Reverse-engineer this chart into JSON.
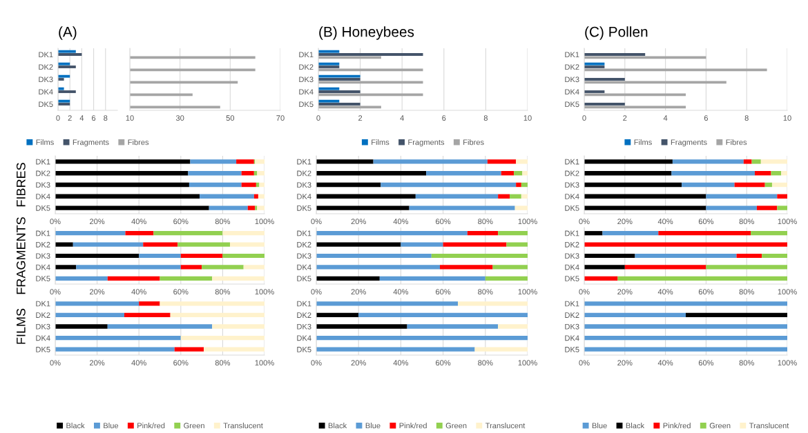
{
  "chart_data": [
    {
      "type": "bar",
      "orientation": "horizontal",
      "title": "(A)",
      "categories": [
        "DK1",
        "DK2",
        "DK3",
        "DK4",
        "DK5"
      ],
      "xlim": [
        0,
        10
      ],
      "xticks": [
        0,
        2,
        4,
        6,
        8
      ],
      "grid": "x",
      "legend": "bottom",
      "series": [
        {
          "name": "Films",
          "color": "#0070c0",
          "values": [
            3,
            2,
            2,
            1,
            2
          ]
        },
        {
          "name": "Fragments",
          "color": "#44546a",
          "values": [
            4,
            3,
            1,
            3,
            2
          ]
        },
        {
          "name": "Fibres",
          "color": "#a5a5a5",
          "values": [
            null,
            null,
            null,
            null,
            null
          ]
        }
      ]
    },
    {
      "type": "bar",
      "orientation": "horizontal",
      "categories": [
        null,
        null,
        null,
        null,
        null
      ],
      "xlim": [
        10,
        70
      ],
      "xticks": [
        10,
        30,
        50,
        70
      ],
      "grid": "x",
      "series": [
        {
          "color": "#0070c0",
          "values": [
            null,
            null,
            null,
            null,
            null
          ]
        },
        {
          "color": "#44546a",
          "values": [
            null,
            null,
            null,
            null,
            null
          ]
        },
        {
          "color": "#a5a5a5",
          "values": [
            60,
            60,
            53,
            35,
            46
          ]
        }
      ]
    },
    {
      "type": "bar",
      "orientation": "horizontal",
      "title": "(B) Honeybees",
      "categories": [
        "DK1",
        "DK2",
        "DK3",
        "DK4",
        "DK5"
      ],
      "xlim": [
        0,
        10
      ],
      "xticks": [
        0,
        2,
        4,
        6,
        8,
        10
      ],
      "grid": "x",
      "legend": "bottom",
      "series": [
        {
          "name": "Films",
          "color": "#0070c0",
          "values": [
            1,
            1,
            2,
            1,
            1
          ]
        },
        {
          "name": "Fragments",
          "color": "#44546a",
          "values": [
            5,
            1,
            2,
            2,
            2
          ]
        },
        {
          "name": "Fibres",
          "color": "#a5a5a5",
          "values": [
            3,
            5,
            5,
            5,
            3
          ]
        }
      ]
    },
    {
      "type": "bar",
      "orientation": "horizontal",
      "title": "(C) Pollen",
      "categories": [
        "DK1",
        "DK2",
        "DK3",
        "DK4",
        "DK5"
      ],
      "xlim": [
        0,
        10
      ],
      "xticks": [
        0,
        2,
        4,
        6,
        8,
        10
      ],
      "grid": "x",
      "legend": "bottom",
      "series": [
        {
          "name": "Films",
          "color": "#0070c0",
          "values": [
            0,
            1,
            0,
            0,
            0
          ]
        },
        {
          "name": "Fragments",
          "color": "#44546a",
          "values": [
            3,
            1,
            2,
            1,
            2
          ]
        },
        {
          "name": "Fibres",
          "color": "#a5a5a5",
          "values": [
            6,
            9,
            7,
            5,
            5
          ]
        }
      ]
    },
    {
      "type": "bar",
      "orientation": "horizontal",
      "stacked": true,
      "ylabel": "FIBRES",
      "categories": [
        "DK1",
        "DK2",
        "DK3",
        "DK4",
        "DK5"
      ],
      "xlim": [
        0,
        100
      ],
      "xticks": [
        {
          "value": 0,
          "label": "0%"
        },
        {
          "value": 20,
          "label": "20%"
        },
        {
          "value": 40,
          "label": "40%"
        },
        {
          "value": 60,
          "label": "60%"
        },
        {
          "value": 80,
          "label": "80%"
        },
        {
          "value": 100,
          "label": "100%"
        }
      ],
      "grid": "x",
      "series": [
        {
          "color": "#000000",
          "values": [
            64.5,
            63.5,
            64,
            69,
            73.5
          ]
        },
        {
          "color": "#5b9bd5",
          "values": [
            22,
            25.5,
            25,
            26,
            18.5
          ]
        },
        {
          "color": "#ff0000",
          "values": [
            8.5,
            6,
            7,
            2,
            3.5
          ]
        },
        {
          "color": "#92d050",
          "values": [
            0.5,
            1.5,
            1.5,
            0,
            1
          ]
        },
        {
          "color": "#fff2cc",
          "values": [
            4.5,
            3.5,
            2.5,
            3,
            3.5
          ]
        }
      ]
    },
    {
      "type": "bar",
      "orientation": "horizontal",
      "stacked": true,
      "categories": [
        "DK1",
        "DK2",
        "DK3",
        "DK4",
        "DK5"
      ],
      "xlim": [
        0,
        100
      ],
      "xticks": [
        {
          "value": 0,
          "label": "0%"
        },
        {
          "value": 20,
          "label": "20%"
        },
        {
          "value": 40,
          "label": "40%"
        },
        {
          "value": 60,
          "label": "60%"
        },
        {
          "value": 80,
          "label": "80%"
        },
        {
          "value": 100,
          "label": "100%"
        }
      ],
      "grid": "x",
      "series": [
        {
          "color": "#000000",
          "values": [
            27,
            52,
            30.5,
            47,
            44
          ]
        },
        {
          "color": "#5b9bd5",
          "values": [
            54,
            35.5,
            64,
            39,
            50
          ]
        },
        {
          "color": "#ff0000",
          "values": [
            13.5,
            6,
            2.5,
            5.5,
            0
          ]
        },
        {
          "color": "#92d050",
          "values": [
            0,
            4,
            3,
            5.5,
            0
          ]
        },
        {
          "color": "#fff2cc",
          "values": [
            5.5,
            2.5,
            0,
            3,
            6
          ]
        }
      ]
    },
    {
      "type": "bar",
      "orientation": "horizontal",
      "stacked": true,
      "categories": [
        "DK1",
        "DK2",
        "DK3",
        "DK4",
        "DK5"
      ],
      "xlim": [
        0,
        100
      ],
      "xticks": [
        {
          "value": 0,
          "label": "0%"
        },
        {
          "value": 20,
          "label": "20%"
        },
        {
          "value": 40,
          "label": "40%"
        },
        {
          "value": 60,
          "label": "60%"
        },
        {
          "value": 80,
          "label": "80%"
        },
        {
          "value": 100,
          "label": "100%"
        }
      ],
      "grid": "x",
      "series": [
        {
          "color": "#000000",
          "values": [
            43.5,
            43,
            48,
            60,
            60
          ]
        },
        {
          "color": "#5b9bd5",
          "values": [
            35,
            41,
            26,
            35,
            25
          ]
        },
        {
          "color": "#ff0000",
          "values": [
            4,
            8,
            15,
            5,
            10
          ]
        },
        {
          "color": "#92d050",
          "values": [
            4.5,
            5,
            3.5,
            0,
            5
          ]
        },
        {
          "color": "#fff2cc",
          "values": [
            13,
            3,
            7.5,
            0,
            0
          ]
        }
      ]
    },
    {
      "type": "bar",
      "orientation": "horizontal",
      "stacked": true,
      "ylabel": "FRAGMENTS",
      "categories": [
        "DK1",
        "DK2",
        "DK3",
        "DK4",
        "DK5"
      ],
      "xlim": [
        0,
        100
      ],
      "xticks": [
        {
          "value": 0,
          "label": "0%"
        },
        {
          "value": 20,
          "label": "20%"
        },
        {
          "value": 40,
          "label": "40%"
        },
        {
          "value": 60,
          "label": "60%"
        },
        {
          "value": 80,
          "label": "80%"
        },
        {
          "value": 100,
          "label": "100%"
        }
      ],
      "grid": "x",
      "series": [
        {
          "color": "#000000",
          "values": [
            0,
            8.5,
            40,
            10,
            0
          ]
        },
        {
          "color": "#5b9bd5",
          "values": [
            33.5,
            33.5,
            20,
            50,
            25
          ]
        },
        {
          "color": "#ff0000",
          "values": [
            13.5,
            16.5,
            20,
            10,
            25
          ]
        },
        {
          "color": "#92d050",
          "values": [
            33,
            25,
            20,
            20,
            25
          ]
        },
        {
          "color": "#fff2cc",
          "values": [
            20,
            16.5,
            0,
            10,
            25
          ]
        }
      ]
    },
    {
      "type": "bar",
      "orientation": "horizontal",
      "stacked": true,
      "categories": [
        "DK1",
        "DK2",
        "DK3",
        "DK4",
        "DK5"
      ],
      "xlim": [
        0,
        100
      ],
      "xticks": [
        {
          "value": 0,
          "label": "0%"
        },
        {
          "value": 20,
          "label": "20%"
        },
        {
          "value": 40,
          "label": "40%"
        },
        {
          "value": 60,
          "label": "60%"
        },
        {
          "value": 80,
          "label": "80%"
        },
        {
          "value": 100,
          "label": "100%"
        }
      ],
      "grid": "x",
      "series": [
        {
          "color": "#000000",
          "values": [
            0,
            40,
            0,
            0,
            30
          ]
        },
        {
          "color": "#5b9bd5",
          "values": [
            71.5,
            20,
            54.5,
            58.5,
            50
          ]
        },
        {
          "color": "#ff0000",
          "values": [
            14.5,
            30,
            0,
            25,
            0
          ]
        },
        {
          "color": "#92d050",
          "values": [
            14,
            10,
            45.5,
            16.5,
            20
          ]
        },
        {
          "color": "#fff2cc",
          "values": [
            0,
            0,
            0,
            0,
            0
          ]
        }
      ]
    },
    {
      "type": "bar",
      "orientation": "horizontal",
      "stacked": true,
      "categories": [
        "DK1",
        "DK2",
        "DK3",
        "DK4",
        "DK5"
      ],
      "xlim": [
        0,
        100
      ],
      "xticks": [
        {
          "value": 0,
          "label": "0%"
        },
        {
          "value": 20,
          "label": "20%"
        },
        {
          "value": 40,
          "label": "40%"
        },
        {
          "value": 60,
          "label": "60%"
        },
        {
          "value": 80,
          "label": "80%"
        },
        {
          "value": 100,
          "label": "100%"
        }
      ],
      "grid": "x",
      "series": [
        {
          "color": "#000000",
          "values": [
            9,
            0,
            25,
            20,
            0
          ]
        },
        {
          "color": "#5b9bd5",
          "values": [
            27.5,
            0,
            50,
            0,
            0
          ]
        },
        {
          "color": "#ff0000",
          "values": [
            45.5,
            100,
            12.5,
            40,
            16.5
          ]
        },
        {
          "color": "#92d050",
          "values": [
            18,
            0,
            12.5,
            40,
            83.5
          ]
        },
        {
          "color": "#fff2cc",
          "values": [
            0,
            0,
            0,
            0,
            0
          ]
        }
      ]
    },
    {
      "type": "bar",
      "orientation": "horizontal",
      "stacked": true,
      "ylabel": "FILMS",
      "categories": [
        "DK1",
        "DK2",
        "DK3",
        "DK4",
        "DK5"
      ],
      "xlim": [
        0,
        100
      ],
      "xticks": [
        {
          "value": 0,
          "label": "0%"
        },
        {
          "value": 20,
          "label": "20%"
        },
        {
          "value": 40,
          "label": "40%"
        },
        {
          "value": 60,
          "label": "60%"
        },
        {
          "value": 80,
          "label": "80%"
        },
        {
          "value": 100,
          "label": "100%"
        }
      ],
      "grid": "x",
      "legend": "bottom",
      "series": [
        {
          "name": "Black",
          "color": "#000000",
          "values": [
            0,
            0,
            25,
            0,
            0
          ]
        },
        {
          "name": "Blue",
          "color": "#5b9bd5",
          "values": [
            40,
            33,
            50,
            60,
            57
          ]
        },
        {
          "name": "Pink/red",
          "color": "#ff0000",
          "values": [
            10,
            22,
            0,
            0,
            14
          ]
        },
        {
          "name": "Green",
          "color": "#92d050",
          "values": [
            0,
            0,
            0,
            0,
            0
          ]
        },
        {
          "name": "Translucent",
          "color": "#fff2cc",
          "values": [
            50,
            45,
            25,
            40,
            29
          ]
        }
      ]
    },
    {
      "type": "bar",
      "orientation": "horizontal",
      "stacked": true,
      "categories": [
        "DK1",
        "DK2",
        "DK3",
        "DK4",
        "DK5"
      ],
      "xlim": [
        0,
        100
      ],
      "xticks": [
        {
          "value": 0,
          "label": "0%"
        },
        {
          "value": 20,
          "label": "20%"
        },
        {
          "value": 40,
          "label": "40%"
        },
        {
          "value": 60,
          "label": "60%"
        },
        {
          "value": 80,
          "label": "80%"
        },
        {
          "value": 100,
          "label": "100%"
        }
      ],
      "grid": "x",
      "legend": "bottom",
      "series": [
        {
          "name": "Black",
          "color": "#000000",
          "values": [
            0,
            20,
            43,
            0,
            0
          ]
        },
        {
          "name": "Blue",
          "color": "#5b9bd5",
          "values": [
            67,
            80,
            43,
            100,
            75
          ]
        },
        {
          "name": "Pink/red",
          "color": "#ff0000",
          "values": [
            0,
            0,
            0,
            0,
            0
          ]
        },
        {
          "name": "Green",
          "color": "#92d050",
          "values": [
            0,
            0,
            0,
            0,
            0
          ]
        },
        {
          "name": "Translucent",
          "color": "#fff2cc",
          "values": [
            33,
            0,
            14,
            0,
            25
          ]
        }
      ]
    },
    {
      "type": "bar",
      "orientation": "horizontal",
      "stacked": true,
      "categories": [
        "DK1",
        "DK2",
        "DK3",
        "DK4",
        "DK5"
      ],
      "xlim": [
        0,
        100
      ],
      "xticks": [
        {
          "value": 0,
          "label": "0%"
        },
        {
          "value": 20,
          "label": "20%"
        },
        {
          "value": 40,
          "label": "40%"
        },
        {
          "value": 60,
          "label": "60%"
        },
        {
          "value": 80,
          "label": "80%"
        },
        {
          "value": 100,
          "label": "100%"
        }
      ],
      "grid": "x",
      "legend": "bottom",
      "series": [
        {
          "name": "Blue",
          "color": "#5b9bd5",
          "values": [
            100,
            50,
            100,
            100,
            100
          ]
        },
        {
          "name": "Black",
          "color": "#000000",
          "values": [
            0,
            50,
            0,
            0,
            0
          ]
        },
        {
          "name": "Pink/red",
          "color": "#ff0000",
          "values": [
            0,
            0,
            0,
            0,
            0
          ]
        },
        {
          "name": "Green",
          "color": "#92d050",
          "values": [
            0,
            0,
            0,
            0,
            0
          ]
        },
        {
          "name": "Translucent",
          "color": "#fff2cc",
          "values": [
            0,
            0,
            0,
            0,
            0
          ]
        }
      ]
    }
  ]
}
